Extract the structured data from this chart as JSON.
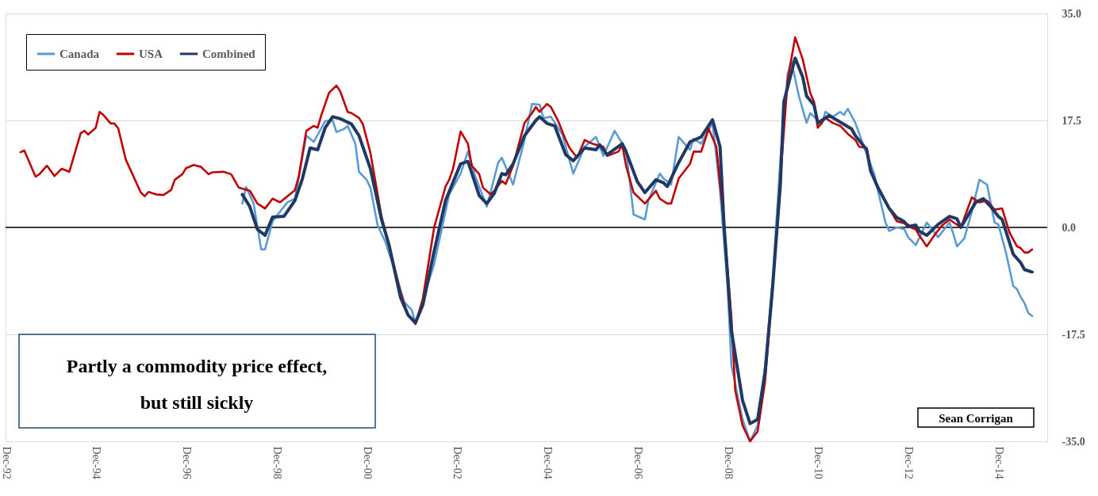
{
  "chart_data": {
    "type": "line",
    "xlim": [
      "1992-12",
      "2016-01"
    ],
    "xticks": [
      {
        "value": "1992-12",
        "label": "Dec-92"
      },
      {
        "value": "1994-12",
        "label": "Dec-94"
      },
      {
        "value": "1996-12",
        "label": "Dec-96"
      },
      {
        "value": "1998-12",
        "label": "Dec-98"
      },
      {
        "value": "2000-12",
        "label": "Dec-00"
      },
      {
        "value": "2002-12",
        "label": "Dec-02"
      },
      {
        "value": "2004-12",
        "label": "Dec-04"
      },
      {
        "value": "2006-12",
        "label": "Dec-06"
      },
      {
        "value": "2008-12",
        "label": "Dec-08"
      },
      {
        "value": "2010-12",
        "label": "Dec-10"
      },
      {
        "value": "2012-12",
        "label": "Dec-12"
      },
      {
        "value": "2014-12",
        "label": "Dec-14"
      }
    ],
    "ylim": [
      -35,
      35
    ],
    "yticks": [
      {
        "value": 35,
        "label": "35.0"
      },
      {
        "value": 17.5,
        "label": "17.5"
      },
      {
        "value": 0,
        "label": "0.0"
      },
      {
        "value": -17.5,
        "label": "-17.5"
      },
      {
        "value": -35,
        "label": "-35.0"
      }
    ],
    "grid": "y",
    "legend": "top left",
    "ref_lines": [
      {
        "axis": "y",
        "value": 0,
        "color": "#000000"
      }
    ],
    "annotations": [
      "Partly a  commodity price effect,\nbut still sickly",
      "Sean Corrigan"
    ],
    "series": [
      {
        "name": "Canada",
        "color": "#5b9bd5",
        "x": [
          "1998-03",
          "1998-04",
          "1998-06",
          "1998-08",
          "1998-09",
          "1998-11",
          "1999-01",
          "1999-03",
          "1999-05",
          "1999-08",
          "1999-10",
          "2000-01",
          "2000-03",
          "2000-04",
          "2000-06",
          "2000-07",
          "2000-09",
          "2000-10",
          "2000-12",
          "2001-01",
          "2001-03",
          "2001-05",
          "2001-08",
          "2001-10",
          "2001-12",
          "2002-01",
          "2002-03",
          "2002-06",
          "2002-08",
          "2002-10",
          "2003-01",
          "2003-03",
          "2003-05",
          "2003-08",
          "2003-11",
          "2003-12",
          "2004-03",
          "2004-06",
          "2004-08",
          "2004-10",
          "2004-11",
          "2005-01",
          "2005-04",
          "2005-07",
          "2005-10",
          "2006-01",
          "2006-03",
          "2006-06",
          "2006-09",
          "2006-11",
          "2007-02",
          "2007-03",
          "2007-06",
          "2007-07",
          "2007-09",
          "2007-11",
          "2008-02",
          "2008-03",
          "2008-05",
          "2008-08",
          "2008-10",
          "2008-12",
          "2009-01",
          "2009-04",
          "2009-06",
          "2009-08",
          "2009-10",
          "2009-12",
          "2010-02",
          "2010-04",
          "2010-05",
          "2010-07",
          "2010-09",
          "2010-10",
          "2011-01",
          "2011-02",
          "2011-04",
          "2011-06",
          "2011-07",
          "2011-08",
          "2011-10",
          "2011-12",
          "2012-03",
          "2012-04",
          "2012-06",
          "2012-07",
          "2012-09",
          "2012-11",
          "2012-12",
          "2013-02",
          "2013-05",
          "2013-08",
          "2013-11",
          "2013-12",
          "2014-01",
          "2014-03",
          "2014-05",
          "2014-07",
          "2014-09",
          "2014-11",
          "2014-12",
          "2015-02",
          "2015-04",
          "2015-05",
          "2015-06",
          "2015-07",
          "2015-08",
          "2015-09"
        ],
        "values": [
          3.9,
          6.6,
          3.9,
          -3.6,
          -3.6,
          1.0,
          2.6,
          4.1,
          4.7,
          15.0,
          14.0,
          17.4,
          17.5,
          15.6,
          16.1,
          16.6,
          13.7,
          9.1,
          7.8,
          6.5,
          0.3,
          -2.3,
          -8.0,
          -12.2,
          -13.5,
          -15.6,
          -11.9,
          -6.0,
          -0.3,
          5.4,
          8.8,
          12.4,
          8.3,
          3.4,
          10.6,
          11.4,
          7.0,
          14.3,
          20.2,
          20.1,
          17.9,
          18.1,
          15.3,
          8.8,
          13.2,
          14.8,
          11.7,
          15.8,
          12.7,
          2.1,
          1.3,
          4.4,
          8.8,
          8.0,
          7.0,
          14.8,
          12.7,
          14.5,
          13.7,
          17.1,
          6.0,
          -9.6,
          -22.6,
          -31.4,
          -35.0,
          -32.4,
          -22.6,
          -8.6,
          11.1,
          25.1,
          27.2,
          21.5,
          17.1,
          18.7,
          16.9,
          18.9,
          18.1,
          18.9,
          18.4,
          19.4,
          17.1,
          13.7,
          8.8,
          6.0,
          0.8,
          -0.6,
          0.0,
          -0.3,
          -1.6,
          -2.9,
          0.8,
          -1.6,
          0.8,
          -1.0,
          -3.1,
          -1.8,
          2.6,
          7.8,
          7.0,
          0.8,
          0.5,
          -4.1,
          -9.6,
          -10.1,
          -11.4,
          -12.4,
          -14.0,
          -14.5
        ]
      },
      {
        "name": "USA",
        "color": "#c00000",
        "x": [
          "1993-04",
          "1993-05",
          "1993-08",
          "1993-09",
          "1993-11",
          "1994-01",
          "1994-03",
          "1994-05",
          "1994-08",
          "1994-09",
          "1994-10",
          "1994-12",
          "1995-01",
          "1995-02",
          "1995-04",
          "1995-05",
          "1995-06",
          "1995-08",
          "1995-12",
          "1996-01",
          "1996-02",
          "1996-04",
          "1996-06",
          "1996-08",
          "1996-09",
          "1996-11",
          "1996-12",
          "1997-02",
          "1997-04",
          "1997-06",
          "1997-07",
          "1997-10",
          "1997-12",
          "1998-02",
          "1998-05",
          "1998-07",
          "1998-09",
          "1998-11",
          "1999-01",
          "1999-05",
          "1999-06",
          "1999-08",
          "1999-10",
          "1999-11",
          "1999-12",
          "2000-02",
          "2000-04",
          "2000-05",
          "2000-07",
          "2000-08",
          "2000-10",
          "2000-11",
          "2001-01",
          "2001-04",
          "2001-06",
          "2001-09",
          "2001-11",
          "2002-01",
          "2002-03",
          "2002-06",
          "2002-09",
          "2002-10",
          "2002-11",
          "2003-01",
          "2003-03",
          "2003-04",
          "2003-06",
          "2003-07",
          "2003-09",
          "2003-10",
          "2003-12",
          "2004-01",
          "2004-03",
          "2004-06",
          "2004-08",
          "2004-09",
          "2004-10",
          "2004-12",
          "2005-01",
          "2005-03",
          "2005-05",
          "2005-06",
          "2005-08",
          "2005-10",
          "2005-12",
          "2006-03",
          "2006-04",
          "2006-07",
          "2006-08",
          "2006-09",
          "2006-11",
          "2007-02",
          "2007-05",
          "2007-06",
          "2007-08",
          "2007-09",
          "2007-11",
          "2008-02",
          "2008-03",
          "2008-05",
          "2008-07",
          "2008-09",
          "2008-11",
          "2009-01",
          "2009-02",
          "2009-04",
          "2009-06",
          "2009-08",
          "2009-10",
          "2009-12",
          "2010-02",
          "2010-04",
          "2010-06",
          "2010-08",
          "2010-10",
          "2010-11",
          "2010-12",
          "2011-02",
          "2011-04",
          "2011-06",
          "2011-08",
          "2011-10",
          "2011-11",
          "2012-01",
          "2012-02",
          "2012-04",
          "2012-07",
          "2012-09",
          "2012-12",
          "2013-01",
          "2013-02",
          "2013-03",
          "2013-05",
          "2013-07",
          "2013-09",
          "2013-11",
          "2014-02",
          "2014-05",
          "2014-07",
          "2014-09",
          "2014-11",
          "2015-01",
          "2015-03",
          "2015-05",
          "2015-06",
          "2015-07",
          "2015-08",
          "2015-09"
        ],
        "values": [
          12.3,
          12.6,
          8.3,
          8.7,
          10.1,
          8.4,
          9.6,
          9.1,
          15.4,
          15.8,
          15.2,
          16.3,
          18.9,
          18.4,
          17.0,
          17.0,
          16.2,
          11.1,
          5.7,
          5.1,
          5.8,
          5.4,
          5.3,
          6.1,
          7.8,
          8.7,
          9.7,
          10.2,
          9.9,
          8.7,
          9.0,
          9.1,
          8.7,
          6.5,
          6.0,
          3.9,
          3.1,
          4.7,
          4.1,
          6.1,
          8.3,
          15.8,
          16.6,
          16.3,
          18.4,
          22.0,
          23.2,
          22.3,
          18.9,
          18.7,
          17.9,
          16.9,
          12.2,
          1.8,
          -2.9,
          -10.6,
          -14.3,
          -15.8,
          -11.7,
          0.0,
          6.7,
          7.8,
          9.6,
          15.7,
          13.7,
          10.1,
          8.7,
          6.5,
          5.4,
          6.0,
          7.6,
          7.1,
          10.1,
          17.1,
          18.7,
          19.7,
          18.9,
          20.2,
          19.7,
          17.4,
          14.3,
          13.0,
          11.4,
          14.3,
          13.7,
          13.2,
          11.7,
          12.4,
          13.5,
          10.1,
          5.7,
          3.9,
          6.0,
          4.7,
          3.9,
          3.9,
          8.0,
          10.4,
          12.4,
          12.4,
          16.1,
          13.2,
          0.8,
          -14.8,
          -26.7,
          -32.4,
          -35.0,
          -33.4,
          -25.1,
          -9.6,
          8.0,
          24.1,
          31.1,
          27.5,
          22.0,
          20.5,
          16.3,
          17.9,
          17.1,
          16.6,
          15.3,
          14.3,
          13.2,
          13.0,
          9.1,
          6.7,
          3.1,
          1.0,
          0.5,
          -0.1,
          -0.3,
          -1.3,
          -3.1,
          -1.3,
          0.3,
          1.3,
          0.0,
          4.9,
          4.1,
          4.4,
          2.9,
          3.1,
          -0.8,
          -3.1,
          -3.4,
          -4.1,
          -4.1,
          -3.6
        ]
      },
      {
        "name": "Combined",
        "color": "#203864",
        "x": [
          "1998-03",
          "1998-05",
          "1998-07",
          "1998-09",
          "1998-11",
          "1999-02",
          "1999-05",
          "1999-07",
          "1999-09",
          "1999-11",
          "2000-01",
          "2000-03",
          "2000-05",
          "2000-08",
          "2000-10",
          "2001-01",
          "2001-04",
          "2001-06",
          "2001-09",
          "2001-11",
          "2002-01",
          "2002-03",
          "2002-06",
          "2002-09",
          "2003-01",
          "2003-03",
          "2003-06",
          "2003-08",
          "2003-10",
          "2003-12",
          "2004-01",
          "2004-03",
          "2004-06",
          "2004-09",
          "2004-10",
          "2004-12",
          "2005-02",
          "2005-05",
          "2005-07",
          "2005-10",
          "2006-01",
          "2006-02",
          "2006-04",
          "2006-08",
          "2006-09",
          "2006-12",
          "2007-02",
          "2007-05",
          "2007-07",
          "2007-08",
          "2007-11",
          "2008-02",
          "2008-05",
          "2008-08",
          "2008-10",
          "2008-11",
          "2009-01",
          "2009-04",
          "2009-06",
          "2009-08",
          "2009-10",
          "2009-12",
          "2010-02",
          "2010-03",
          "2010-06",
          "2010-08",
          "2010-09",
          "2010-11",
          "2010-12",
          "2011-02",
          "2011-03",
          "2011-05",
          "2011-09",
          "2011-10",
          "2012-01",
          "2012-02",
          "2012-04",
          "2012-07",
          "2012-09",
          "2012-10",
          "2012-11",
          "2012-12",
          "2013-02",
          "2013-03",
          "2013-05",
          "2013-08",
          "2013-11",
          "2014-01",
          "2014-02",
          "2014-06",
          "2014-08",
          "2014-10",
          "2014-12",
          "2015-01",
          "2015-04",
          "2015-06",
          "2015-07",
          "2015-09"
        ],
        "values": [
          5.4,
          3.4,
          -0.3,
          -1.3,
          1.7,
          1.8,
          4.4,
          8.0,
          13.0,
          12.7,
          16.3,
          18.1,
          17.8,
          16.9,
          15.0,
          9.6,
          1.3,
          -2.9,
          -11.4,
          -14.3,
          -15.6,
          -12.7,
          -3.9,
          4.4,
          10.4,
          10.8,
          5.2,
          3.9,
          5.6,
          8.8,
          8.6,
          10.4,
          15.0,
          17.5,
          18.1,
          17.0,
          16.6,
          11.9,
          10.9,
          13.0,
          12.7,
          13.5,
          11.9,
          13.7,
          12.4,
          7.5,
          5.7,
          7.8,
          7.3,
          6.7,
          10.6,
          14.0,
          14.8,
          17.6,
          13.2,
          0.8,
          -16.9,
          -28.3,
          -32.1,
          -31.4,
          -23.6,
          -9.6,
          7.0,
          20.5,
          27.7,
          24.6,
          21.5,
          20.0,
          17.1,
          17.9,
          18.3,
          17.6,
          16.1,
          15.0,
          12.7,
          9.3,
          6.5,
          3.1,
          1.6,
          1.3,
          0.9,
          0.1,
          0.4,
          -0.6,
          -1.3,
          0.5,
          1.8,
          1.4,
          0.0,
          4.1,
          4.7,
          3.4,
          1.8,
          1.3,
          -4.4,
          -5.8,
          -6.9,
          -7.3
        ]
      }
    ]
  }
}
